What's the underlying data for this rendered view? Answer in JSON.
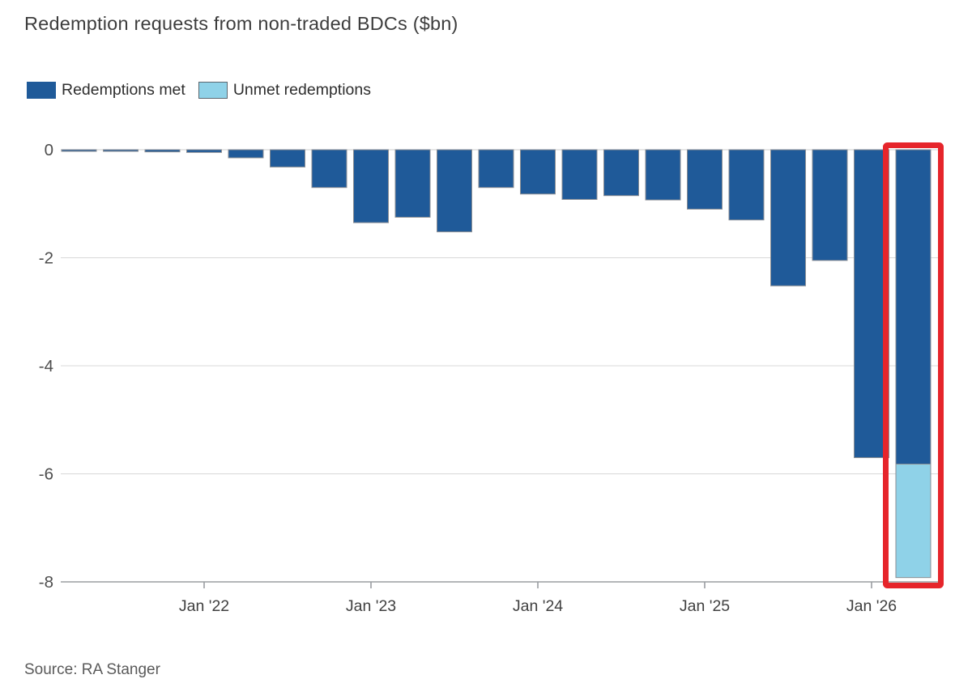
{
  "chart_data": {
    "type": "bar",
    "stacked": true,
    "title": "Redemption requests from non-traded BDCs ($bn)",
    "xlabel": "",
    "ylabel": "",
    "ylim": [
      -8,
      0
    ],
    "y_ticks": [
      0,
      -2,
      -4,
      -6,
      -8
    ],
    "grid": "horizontal",
    "legend_position": "top-left",
    "x_ticks": [
      {
        "label": "Jan '22",
        "bar_index": 3
      },
      {
        "label": "Jan '23",
        "bar_index": 7
      },
      {
        "label": "Jan '24",
        "bar_index": 11
      },
      {
        "label": "Jan '25",
        "bar_index": 15
      },
      {
        "label": "Jan '26",
        "bar_index": 19
      }
    ],
    "series": [
      {
        "name": "Redemptions met",
        "color": "#1f5a99",
        "values": [
          -0.03,
          -0.03,
          -0.04,
          -0.05,
          -0.15,
          -0.32,
          -0.7,
          -1.35,
          -1.25,
          -1.52,
          -0.7,
          -0.82,
          -0.92,
          -0.85,
          -0.93,
          -1.1,
          -1.3,
          -2.52,
          -2.05,
          -5.7,
          -5.82
        ]
      },
      {
        "name": "Unmet redemptions",
        "color": "#8fd2e8",
        "values": [
          0,
          0,
          0,
          0,
          0,
          0,
          0,
          0,
          0,
          0,
          0,
          0,
          0,
          0,
          0,
          0,
          0,
          0,
          0,
          0,
          -2.1
        ]
      }
    ],
    "legend": [
      {
        "label": "Redemptions met",
        "color": "#1f5a99"
      },
      {
        "label": "Unmet redemptions",
        "color": "#8fd2e8"
      }
    ],
    "highlight": {
      "bar_index": 20,
      "color": "#e6252b"
    },
    "annotations": []
  },
  "source": {
    "text": "Source: RA Stanger"
  },
  "style_colors": {
    "bar_stroke": "#8c8f94",
    "gridline": "#d8d8d8",
    "zero_line": "#cfcfcf",
    "axis_line": "#9a9da1",
    "tick_label": "#4d4d4d",
    "x_label": "#404040",
    "legend_swatch_border": "#5b6770"
  }
}
